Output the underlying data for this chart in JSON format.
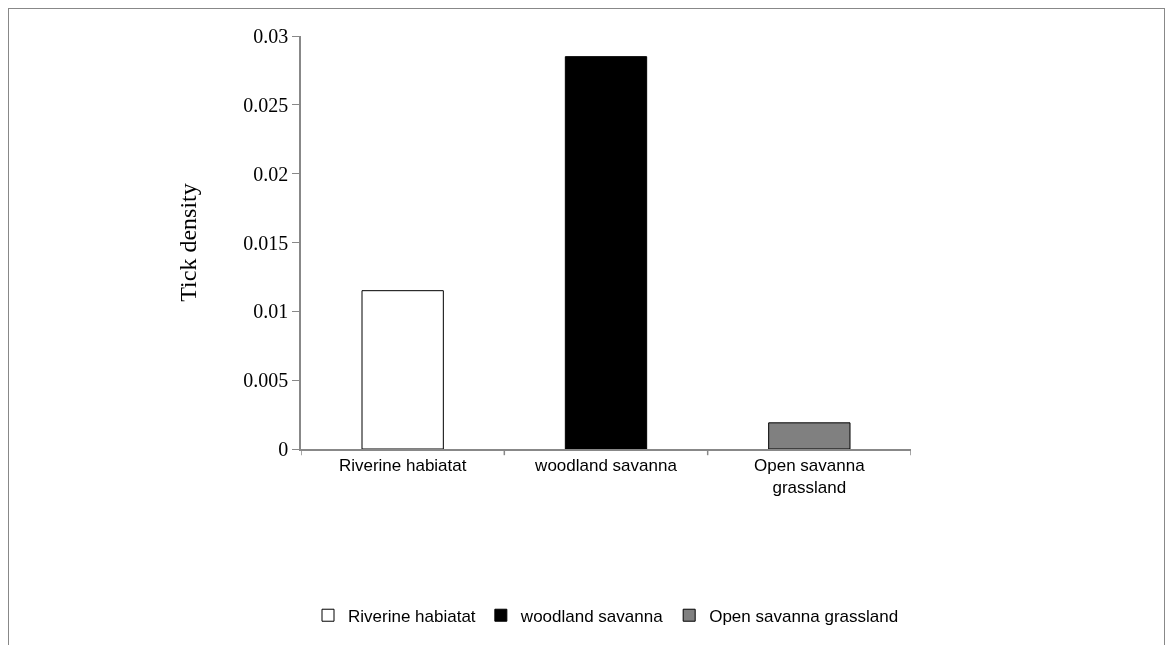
{
  "chart_data": {
    "type": "bar",
    "ylabel": "Tick density",
    "categories": [
      "Riverine habiatat",
      "woodland savanna",
      "Open savanna grassland"
    ],
    "series": [
      {
        "name": "Riverine habiatat",
        "color": "#ffffff",
        "values": [
          0.0115,
          null,
          null
        ]
      },
      {
        "name": "woodland savanna",
        "color": "#000000",
        "values": [
          null,
          0.0285,
          null
        ]
      },
      {
        "name": "Open savanna grassland",
        "color": "#808080",
        "values": [
          null,
          null,
          0.0019
        ]
      }
    ],
    "ylim": [
      0,
      0.03
    ],
    "yticks": [
      0,
      0.005,
      0.01,
      0.015,
      0.02,
      0.025,
      0.03
    ],
    "grid": false,
    "legend": "bottom"
  }
}
